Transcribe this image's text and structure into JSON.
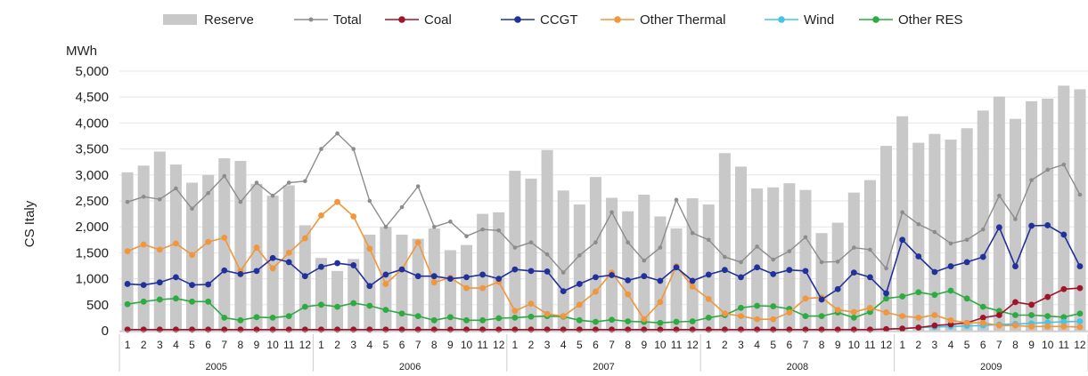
{
  "chart_data": {
    "type": "bar",
    "ylabel": "CS Italy",
    "yunit": "MWh",
    "ylim": [
      0,
      5000
    ],
    "yticks": [
      "0",
      "500",
      "1,000",
      "1,500",
      "2,000",
      "2,500",
      "3,000",
      "3,500",
      "4,000",
      "4,500",
      "5,000"
    ],
    "months": [
      "1",
      "2",
      "3",
      "4",
      "5",
      "6",
      "7",
      "8",
      "9",
      "10",
      "11",
      "12",
      "1",
      "2",
      "3",
      "4",
      "5",
      "6",
      "7",
      "8",
      "9",
      "10",
      "11",
      "12",
      "1",
      "2",
      "3",
      "4",
      "5",
      "6",
      "7",
      "8",
      "9",
      "10",
      "11",
      "12",
      "1",
      "2",
      "3",
      "4",
      "5",
      "6",
      "7",
      "8",
      "9",
      "10",
      "11",
      "12",
      "1",
      "2",
      "3",
      "4",
      "5",
      "6",
      "7",
      "8",
      "9",
      "10",
      "11",
      "12"
    ],
    "years": [
      "2005",
      "2006",
      "2007",
      "2008",
      "2009"
    ],
    "legend": [
      "Reserve",
      "Total",
      "Coal",
      "CCGT",
      "Other Thermal",
      "Wind",
      "Other RES"
    ],
    "colors": {
      "Reserve": "#c8c8c8",
      "Total": "#8c8c8c",
      "Coal": "#a0142a",
      "CCGT": "#22309a",
      "Other Thermal": "#f0963c",
      "Wind": "#46c3e6",
      "Other RES": "#2daa41"
    },
    "series": [
      {
        "name": "Reserve",
        "values": [
          3050,
          3180,
          3450,
          3200,
          2850,
          3000,
          3320,
          3270,
          2830,
          2600,
          2800,
          2030,
          1400,
          1150,
          1380,
          1850,
          2000,
          1850,
          1770,
          1970,
          1550,
          1650,
          2250,
          2280,
          3080,
          2930,
          3480,
          2700,
          2430,
          2960,
          2560,
          2300,
          2620,
          2200,
          1970,
          2550,
          2430,
          3420,
          3160,
          2740,
          2760,
          2840,
          2710,
          1880,
          2080,
          2660,
          2900,
          3560,
          4130,
          3620,
          3790,
          3680,
          3900,
          4240,
          4510,
          4080,
          4420,
          4470,
          4720,
          4650
        ]
      },
      {
        "name": "Total",
        "values": [
          2480,
          2580,
          2530,
          2740,
          2350,
          2650,
          2980,
          2480,
          2850,
          2600,
          2850,
          2880,
          3500,
          3800,
          3500,
          2500,
          2000,
          2380,
          2780,
          2000,
          2100,
          1820,
          1950,
          1930,
          1600,
          1700,
          1470,
          1120,
          1450,
          1700,
          2280,
          1700,
          1350,
          1600,
          2520,
          1880,
          1750,
          1420,
          1320,
          1620,
          1370,
          1530,
          1800,
          1320,
          1330,
          1600,
          1560,
          1200,
          2280,
          2050,
          1900,
          1680,
          1750,
          1950,
          2600,
          2150,
          2900,
          3100,
          3200,
          2620
        ]
      },
      {
        "name": "Coal",
        "values": [
          20,
          20,
          20,
          20,
          20,
          20,
          20,
          20,
          20,
          20,
          20,
          20,
          20,
          20,
          20,
          20,
          20,
          20,
          20,
          20,
          20,
          20,
          20,
          20,
          20,
          20,
          20,
          20,
          20,
          20,
          20,
          20,
          20,
          20,
          20,
          20,
          20,
          20,
          20,
          20,
          20,
          20,
          20,
          20,
          20,
          20,
          20,
          30,
          40,
          60,
          100,
          120,
          150,
          250,
          300,
          550,
          500,
          650,
          800,
          820
        ]
      },
      {
        "name": "CCGT",
        "values": [
          900,
          880,
          930,
          1030,
          880,
          890,
          1160,
          1090,
          1150,
          1400,
          1320,
          1050,
          1230,
          1300,
          1260,
          860,
          1080,
          1180,
          1050,
          1050,
          1000,
          1030,
          1080,
          1000,
          1180,
          1150,
          1140,
          760,
          900,
          1030,
          1070,
          970,
          1050,
          960,
          1220,
          960,
          1080,
          1170,
          1030,
          1220,
          1090,
          1170,
          1150,
          600,
          800,
          1120,
          1030,
          720,
          1750,
          1430,
          1130,
          1240,
          1320,
          1420,
          1990,
          1240,
          2020,
          2030,
          1850,
          1240
        ]
      },
      {
        "name": "Other Thermal",
        "values": [
          1530,
          1660,
          1560,
          1680,
          1460,
          1710,
          1790,
          1150,
          1600,
          1200,
          1500,
          1780,
          2220,
          2480,
          2200,
          1580,
          900,
          1180,
          1700,
          930,
          1020,
          820,
          820,
          940,
          380,
          520,
          320,
          280,
          500,
          750,
          1120,
          700,
          220,
          550,
          1240,
          850,
          610,
          330,
          280,
          220,
          220,
          350,
          620,
          640,
          400,
          360,
          440,
          350,
          280,
          250,
          300,
          200,
          150,
          150,
          100,
          100,
          80,
          80,
          80,
          70
        ]
      },
      {
        "name": "Wind",
        "values": [
          20,
          20,
          20,
          20,
          20,
          20,
          20,
          20,
          20,
          20,
          20,
          20,
          20,
          20,
          20,
          20,
          20,
          20,
          20,
          20,
          20,
          20,
          20,
          20,
          20,
          20,
          20,
          20,
          20,
          20,
          20,
          20,
          20,
          20,
          20,
          20,
          20,
          20,
          20,
          20,
          20,
          20,
          20,
          20,
          20,
          20,
          20,
          30,
          40,
          60,
          70,
          80,
          90,
          100,
          120,
          130,
          140,
          160,
          170,
          180
        ]
      },
      {
        "name": "Other RES",
        "values": [
          510,
          560,
          600,
          620,
          560,
          560,
          250,
          200,
          260,
          250,
          280,
          460,
          500,
          460,
          530,
          480,
          400,
          330,
          280,
          200,
          260,
          200,
          200,
          240,
          250,
          270,
          280,
          270,
          200,
          170,
          210,
          180,
          170,
          150,
          170,
          180,
          250,
          300,
          440,
          480,
          470,
          420,
          280,
          280,
          350,
          250,
          360,
          620,
          660,
          740,
          690,
          770,
          620,
          460,
          380,
          300,
          300,
          280,
          260,
          330
        ]
      }
    ]
  }
}
